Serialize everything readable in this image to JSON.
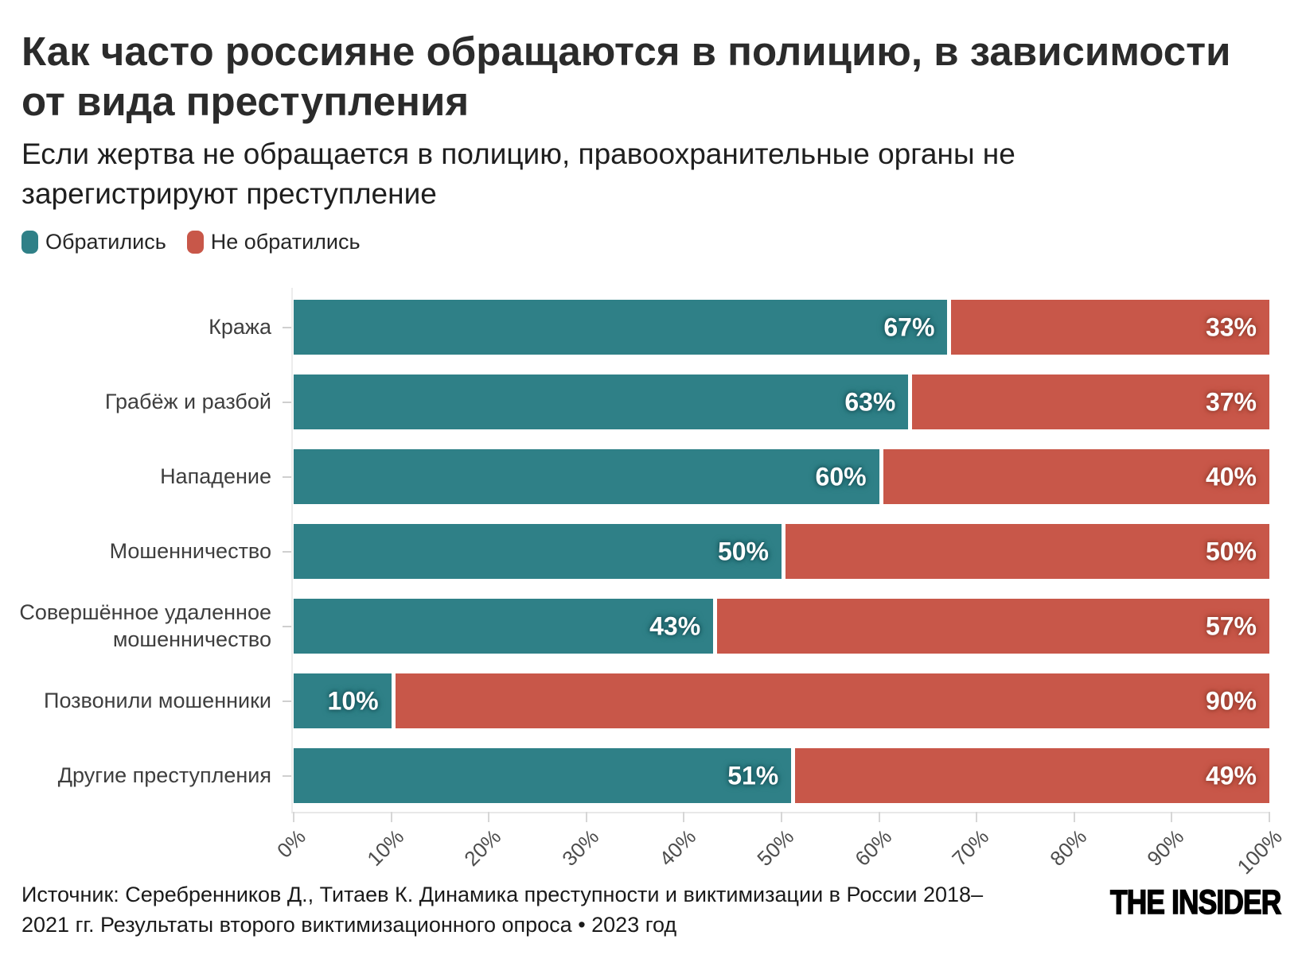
{
  "header": {
    "title": "Как часто россияне обращаются в полицию, в зависимости\nот вида преступления",
    "subtitle": "Если жертва не обращается в полицию, правоохранительные органы не\nзарегистрируют преступление"
  },
  "legend": [
    {
      "label": "Обратились",
      "color": "#2f8087"
    },
    {
      "label": "Не обратились",
      "color": "#c85749"
    }
  ],
  "chart_data": {
    "type": "bar",
    "orientation": "horizontal",
    "stacked": true,
    "categories": [
      "Кража",
      "Грабёж и разбой",
      "Нападение",
      "Мошенничество",
      "Совершённое удаленное мошенничество",
      "Позвонили мошенники",
      "Другие преступления"
    ],
    "series": [
      {
        "name": "Обратились",
        "color": "#2f8087",
        "values": [
          67,
          63,
          60,
          50,
          43,
          10,
          51
        ]
      },
      {
        "name": "Не обратились",
        "color": "#c85749",
        "values": [
          33,
          37,
          40,
          50,
          57,
          90,
          49
        ]
      }
    ],
    "x_ticks": [
      "0%",
      "10%",
      "20%",
      "30%",
      "40%",
      "50%",
      "60%",
      "70%",
      "80%",
      "90%",
      "100%"
    ],
    "xlim": [
      0,
      100
    ],
    "value_suffix": "%",
    "grid": false,
    "legend_position": "top-left"
  },
  "footer": {
    "source": "Источник: Серебренников Д., Титаев К. Динамика преступности и виктимизации в России 2018–\n2021 гг. Результаты второго виктимизационного опроса • 2023 год",
    "logo": "THE INSIDER"
  }
}
